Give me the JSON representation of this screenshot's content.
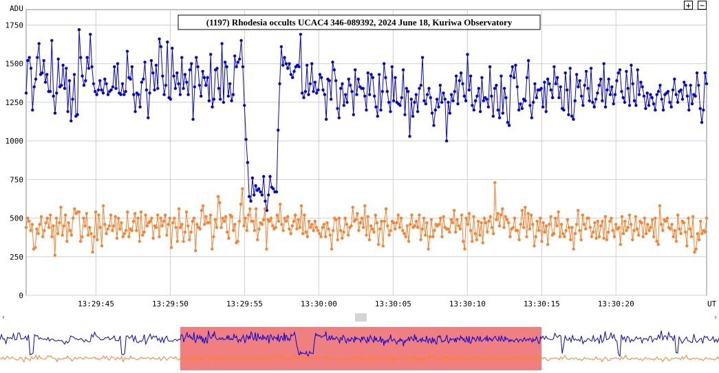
{
  "chart_data": {
    "type": "line",
    "title": "(1197) Rhodesia occults UCAC4 346-089392, 2024 June 18, Kuriwa Observatory",
    "ylabel": "ADU",
    "xlabel": "UT",
    "ylim": [
      0,
      1850
    ],
    "yticks": [
      0,
      250,
      500,
      750,
      1000,
      1250,
      1500,
      1750
    ],
    "xlim": [
      "13:29:40.3",
      "13:30:26.1"
    ],
    "xticks": [
      "13:29:45",
      "13:29:50",
      "13:29:55",
      "13:30:00",
      "13:30:05",
      "13:30:10",
      "13:30:15",
      "13:30:20"
    ],
    "grid": true,
    "series": [
      {
        "color": "#0000dd",
        "values": [
          1310,
          1520,
          1540,
          1470,
          1200,
          1350,
          1400,
          1540,
          1630,
          1430,
          1440,
          1520,
          1380,
          1430,
          1320,
          1320,
          1650,
          1290,
          1180,
          1310,
          1530,
          1350,
          1360,
          1490,
          1340,
          1470,
          1190,
          1390,
          1130,
          1270,
          1430,
          1160,
          1170,
          1720,
          1540,
          1420,
          1360,
          1390,
          1540,
          1470,
          1690,
          1480,
          1370,
          1320,
          1300,
          1330,
          1390,
          1330,
          1310,
          1400,
          1370,
          1300,
          1320,
          1330,
          1350,
          1480,
          1340,
          1500,
          1310,
          1300,
          1370,
          1300,
          1320,
          1580,
          1410,
          1400,
          1480,
          1300,
          1190,
          1310,
          1300,
          1220,
          1380,
          1400,
          1510,
          1330,
          1150,
          1310,
          1520,
          1440,
          1330,
          1490,
          1340,
          1660,
          1610,
          1420,
          1300,
          1360,
          1640,
          1280,
          1270,
          1600,
          1420,
          1340,
          1440,
          1370,
          1300,
          1540,
          1340,
          1430,
          1380,
          1300,
          1460,
          1500,
          1140,
          1350,
          1540,
          1480,
          1360,
          1290,
          1450,
          1410,
          1360,
          1410,
          1260,
          1560,
          1220,
          1270,
          1460,
          1470,
          1340,
          1270,
          1630,
          1250,
          1510,
          1480,
          1290,
          1370,
          1260,
          1300,
          1550,
          1480,
          1510,
          1530,
          1650,
          1480,
          1230,
          1010,
          860,
          640,
          610,
          760,
          650,
          710,
          680,
          690,
          670,
          650,
          770,
          610,
          550,
          650,
          770,
          700,
          690,
          670,
          670,
          1070,
          1370,
          1610,
          1490,
          1540,
          1500,
          1470,
          1500,
          1430,
          1410,
          1450,
          1480,
          1490,
          1480,
          1690,
          1310,
          1280,
          1320,
          1490,
          1300,
          1370,
          1500,
          1320,
          1380,
          1310,
          1330,
          1430,
          1410,
          1330,
          1300,
          1140,
          1400,
          1390,
          1270,
          1510,
          1460,
          1390,
          1210,
          1150,
          1340,
          1370,
          1230,
          1300,
          1250,
          1400,
          1360,
          1320,
          1170,
          1460,
          1300,
          1400,
          1350,
          1340,
          1340,
          1290,
          1200,
          1440,
          1300,
          1430,
          1410,
          1290,
          1220,
          1160,
          1430,
          1200,
          1320,
          1500,
          1410,
          1320,
          1250,
          1190,
          1480,
          1260,
          1410,
          1250,
          1240,
          1230,
          1280,
          1460,
          1170,
          1340,
          1320,
          1030,
          1270,
          1160,
          1250,
          1300,
          1190,
          1340,
          1360,
          1540,
          1260,
          1240,
          1300,
          1340,
          1280,
          1180,
          1100,
          1200,
          1270,
          1220,
          1360,
          1250,
          1310,
          1270,
          1000,
          1250,
          1180,
          1300,
          1260,
          1320,
          1420,
          1240,
          1390,
          1440,
          1370,
          1290,
          1260,
          1560,
          1330,
          1420,
          1230,
          1200,
          1260,
          1290,
          1340,
          1190,
          1410,
          1260,
          1280,
          1270,
          1220,
          1480,
          1290,
          1160,
          1340,
          1360,
          1200,
          1150,
          1420,
          1180,
          1340,
          1280,
          1120,
          1100,
          1420,
          1480,
          1410,
          1490,
          1350,
          1200,
          1240,
          1210,
          1270,
          1260,
          1410,
          1520,
          1230,
          1150,
          1250,
          1370,
          1280,
          1330,
          1330,
          1340,
          1220,
          1380,
          1190,
          1400,
          1370,
          1330,
          1280,
          1480,
          1370,
          1410,
          1280,
          1350,
          1210,
          1200,
          1440,
          1330,
          1170,
          1470,
          1160,
          1140,
          1260,
          1430,
          1350,
          1390,
          1290,
          1230,
          1360,
          1450,
          1340,
          1260,
          1470,
          1250,
          1220,
          1270,
          1310,
          1360,
          1400,
          1260,
          1500,
          1220,
          1330,
          1400,
          1300,
          1350,
          1240,
          1300,
          1390,
          1440,
          1460,
          1320,
          1280,
          1250,
          1450,
          1340,
          1230,
          1490,
          1370,
          1260,
          1230,
          1460,
          1300,
          1380,
          1350,
          1290,
          1210,
          1310,
          1230,
          1300,
          1280,
          1240,
          1200,
          1300,
          1320,
          1360,
          1270,
          1200,
          1300,
          1310,
          1320,
          1250,
          1220,
          1330,
          1400,
          1300,
          1250,
          1320,
          1330,
          1270,
          1380,
          1360,
          1290,
          1200,
          1360,
          1240,
          1300,
          1290,
          1440,
          1360,
          1210,
          1120,
          1200,
          1440,
          1370
        ]
      },
      {
        "color": "#ff7f2a",
        "values": [
          440,
          500,
          480,
          420,
          460,
          300,
          310,
          430,
          400,
          460,
          510,
          380,
          420,
          470,
          500,
          440,
          520,
          380,
          450,
          260,
          500,
          400,
          470,
          570,
          390,
          450,
          520,
          350,
          470,
          420,
          390,
          500,
          560,
          530,
          540,
          540,
          350,
          380,
          500,
          450,
          530,
          390,
          440,
          400,
          280,
          380,
          540,
          360,
          520,
          440,
          320,
          580,
          460,
          400,
          430,
          450,
          520,
          420,
          450,
          510,
          370,
          500,
          430,
          470,
          380,
          400,
          420,
          540,
          380,
          430,
          420,
          480,
          530,
          420,
          500,
          350,
          540,
          390,
          410,
          520,
          450,
          470,
          480,
          500,
          370,
          450,
          440,
          520,
          380,
          500,
          450,
          480,
          520,
          390,
          460,
          500,
          310,
          470,
          500,
          440,
          350,
          560,
          440,
          460,
          350,
          410,
          540,
          450,
          360,
          410,
          480,
          500,
          290,
          460,
          440,
          430,
          550,
          580,
          460,
          510,
          470,
          470,
          520,
          300,
          380,
          490,
          440,
          640,
          600,
          440,
          500,
          480,
          510,
          410,
          370,
          520,
          510,
          420,
          460,
          340,
          350,
          480,
          590,
          690,
          450,
          500,
          420,
          520,
          560,
          480,
          480,
          420,
          560,
          360,
          430,
          470,
          460,
          490,
          560,
          300,
          490,
          480,
          500,
          450,
          430,
          440,
          520,
          480,
          590,
          460,
          420,
          500,
          480,
          510,
          430,
          400,
          450,
          480,
          520,
          430,
          490,
          440,
          580,
          400,
          520,
          410,
          380,
          480,
          440,
          460,
          420,
          480,
          440,
          420,
          400,
          380,
          440,
          460,
          380,
          470,
          430,
          390,
          300,
          420,
          500,
          490,
          360,
          500,
          420,
          370,
          410,
          500,
          460,
          390,
          440,
          450,
          570,
          480,
          490,
          530,
          420,
          470,
          500,
          440,
          580,
          390,
          510,
          360,
          450,
          430,
          410,
          520,
          470,
          330,
          430,
          480,
          320,
          480,
          560,
          450,
          390,
          420,
          480,
          470,
          430,
          470,
          520,
          440,
          500,
          420,
          400,
          380,
          450,
          350,
          460,
          520,
          440,
          450,
          480,
          440,
          520,
          360,
          430,
          500,
          390,
          470,
          300,
          380,
          490,
          380,
          420,
          460,
          450,
          460,
          500,
          380,
          510,
          440,
          430,
          430,
          410,
          490,
          470,
          550,
          410,
          490,
          450,
          430,
          520,
          350,
          300,
          500,
          460,
          530,
          420,
          350,
          510,
          400,
          360,
          480,
          390,
          470,
          340,
          500,
          470,
          410,
          480,
          510,
          440,
          400,
          730,
          490,
          530,
          450,
          520,
          560,
          440,
          510,
          490,
          470,
          380,
          430,
          440,
          500,
          420,
          420,
          360,
          460,
          550,
          440,
          570,
          380,
          530,
          430,
          520,
          460,
          320,
          380,
          480,
          420,
          500,
          350,
          470,
          410,
          450,
          330,
          460,
          510,
          390,
          400,
          500,
          450,
          540,
          380,
          460,
          400,
          380,
          420,
          490,
          440,
          360,
          440,
          300,
          400,
          460,
          550,
          420,
          360,
          520,
          460,
          430,
          500,
          500,
          440,
          380,
          410,
          470,
          370,
          480,
          380,
          450,
          480,
          370,
          510,
          360,
          410,
          480,
          500,
          420,
          380,
          460,
          430,
          440,
          330,
          510,
          400,
          480,
          420,
          440,
          520,
          460,
          360,
          420,
          510,
          430,
          390,
          480,
          470,
          380,
          500,
          400,
          460,
          420,
          440,
          490,
          380,
          500,
          350,
          330,
          580,
          460,
          420,
          490,
          480,
          500,
          440,
          430,
          460,
          380,
          420,
          350,
          520,
          430,
          400,
          480,
          470,
          410,
          320,
          500,
          430,
          380,
          510,
          280,
          300,
          400,
          360,
          480,
          400,
          420,
          410,
          500
        ]
      }
    ],
    "navigator": {
      "selected_range": [
        "13:29:50",
        "13:30:15"
      ]
    }
  },
  "controls": {
    "zoom_in": "+",
    "zoom_out": "−",
    "scroll_left": "‹",
    "scroll_right": "›"
  }
}
